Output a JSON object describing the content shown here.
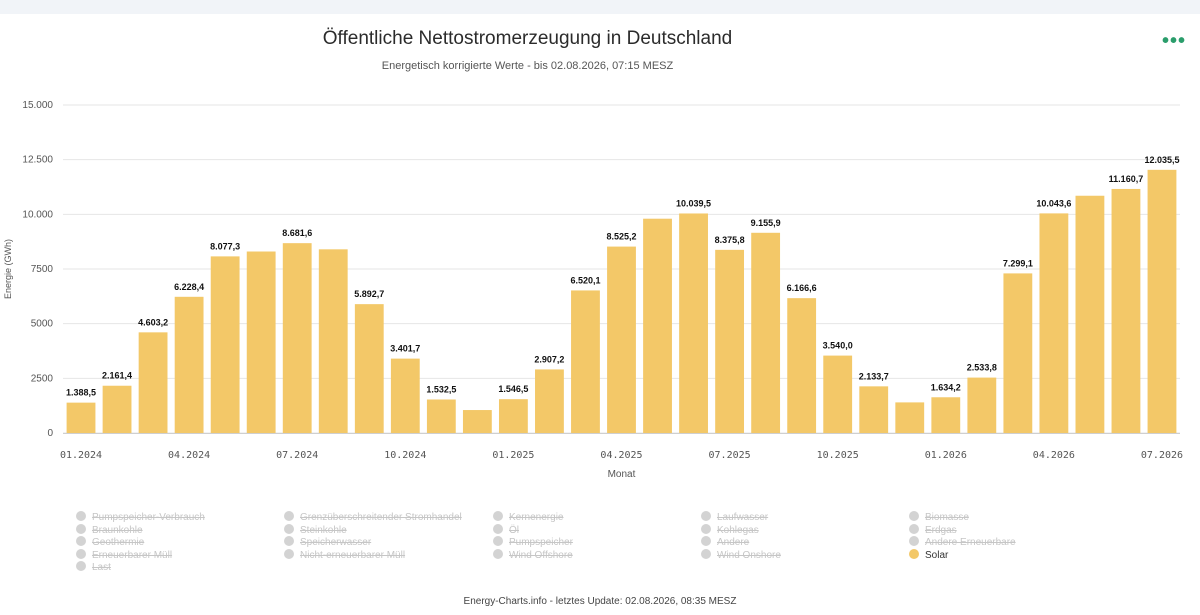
{
  "title": "Öffentliche Nettostromerzeugung in Deutschland",
  "subtitle": "Energetisch korrigierte Werte - bis 02.08.2026, 07:15 MESZ",
  "menu_icon": "•••",
  "footer": "Energy-Charts.info - letztes Update: 02.08.2026, 08:35 MESZ",
  "colors": {
    "bar": "#f3c868",
    "menu": "#2a9d6b",
    "grid": "#e6e6e6"
  },
  "chart_data": {
    "type": "bar",
    "xlabel": "Monat",
    "ylabel": "Energie (GWh)",
    "ylim": [
      0,
      15000
    ],
    "yticks": [
      {
        "value": 0,
        "label": "0"
      },
      {
        "value": 2500,
        "label": "2500"
      },
      {
        "value": 5000,
        "label": "5000"
      },
      {
        "value": 7500,
        "label": "7500"
      },
      {
        "value": 10000,
        "label": "10.000"
      },
      {
        "value": 12500,
        "label": "12.500"
      },
      {
        "value": 15000,
        "label": "15.000"
      }
    ],
    "xticks": [
      {
        "index": 0,
        "label": "01.2024"
      },
      {
        "index": 3,
        "label": "04.2024"
      },
      {
        "index": 6,
        "label": "07.2024"
      },
      {
        "index": 9,
        "label": "10.2024"
      },
      {
        "index": 12,
        "label": "01.2025"
      },
      {
        "index": 15,
        "label": "04.2025"
      },
      {
        "index": 18,
        "label": "07.2025"
      },
      {
        "index": 21,
        "label": "10.2025"
      },
      {
        "index": 24,
        "label": "01.2026"
      },
      {
        "index": 27,
        "label": "04.2026"
      },
      {
        "index": 30,
        "label": "07.2026"
      }
    ],
    "grid": true,
    "series": [
      {
        "name": "Solar",
        "color": "#f3c868",
        "values": [
          1388.5,
          2161.4,
          4603.2,
          6228.4,
          8077.3,
          8300,
          8681.6,
          8400,
          5892.7,
          3401.7,
          1532.5,
          1050,
          1546.5,
          2907.2,
          6520.1,
          8525.2,
          9800,
          10039.5,
          8375.8,
          9155.9,
          6166.6,
          3540.0,
          2133.7,
          1400,
          1634.2,
          2533.8,
          7299.1,
          10043.6,
          10850,
          11160.7,
          12035.5
        ],
        "labels": [
          "1.388,5",
          "2.161,4",
          "4.603,2",
          "6.228,4",
          "8.077,3",
          "",
          "8.681,6",
          "",
          "5.892,7",
          "3.401,7",
          "1.532,5",
          "",
          "1.546,5",
          "2.907,2",
          "6.520,1",
          "8.525,2",
          "",
          "10.039,5",
          "8.375,8",
          "9.155,9",
          "6.166,6",
          "3.540,0",
          "2.133,7",
          "",
          "1.634,2",
          "2.533,8",
          "7.299,1",
          "10.043,6",
          "",
          "11.160,7",
          "12.035,5"
        ]
      }
    ]
  },
  "legend": [
    {
      "label": "Pumpspeicher-Verbrauch",
      "active": false
    },
    {
      "label": "Braunkohle",
      "active": false
    },
    {
      "label": "Geothermie",
      "active": false
    },
    {
      "label": "Erneuerbarer Müll",
      "active": false
    },
    {
      "label": "Last",
      "active": false
    },
    {
      "label": "Grenzüberschreitender Stromhandel",
      "active": false
    },
    {
      "label": "Steinkohle",
      "active": false
    },
    {
      "label": "Speicherwasser",
      "active": false
    },
    {
      "label": "Nicht-erneuerbarer Müll",
      "active": false
    },
    {
      "label": "Kernenergie",
      "active": false
    },
    {
      "label": "Öl",
      "active": false
    },
    {
      "label": "Pumpspeicher",
      "active": false
    },
    {
      "label": "Wind Offshore",
      "active": false
    },
    {
      "label": "Laufwasser",
      "active": false
    },
    {
      "label": "Kohlegas",
      "active": false
    },
    {
      "label": "Andere",
      "active": false
    },
    {
      "label": "Wind Onshore",
      "active": false
    },
    {
      "label": "Biomasse",
      "active": false
    },
    {
      "label": "Erdgas",
      "active": false
    },
    {
      "label": "Andere Erneuerbare",
      "active": false
    },
    {
      "label": "Solar",
      "active": true
    }
  ]
}
